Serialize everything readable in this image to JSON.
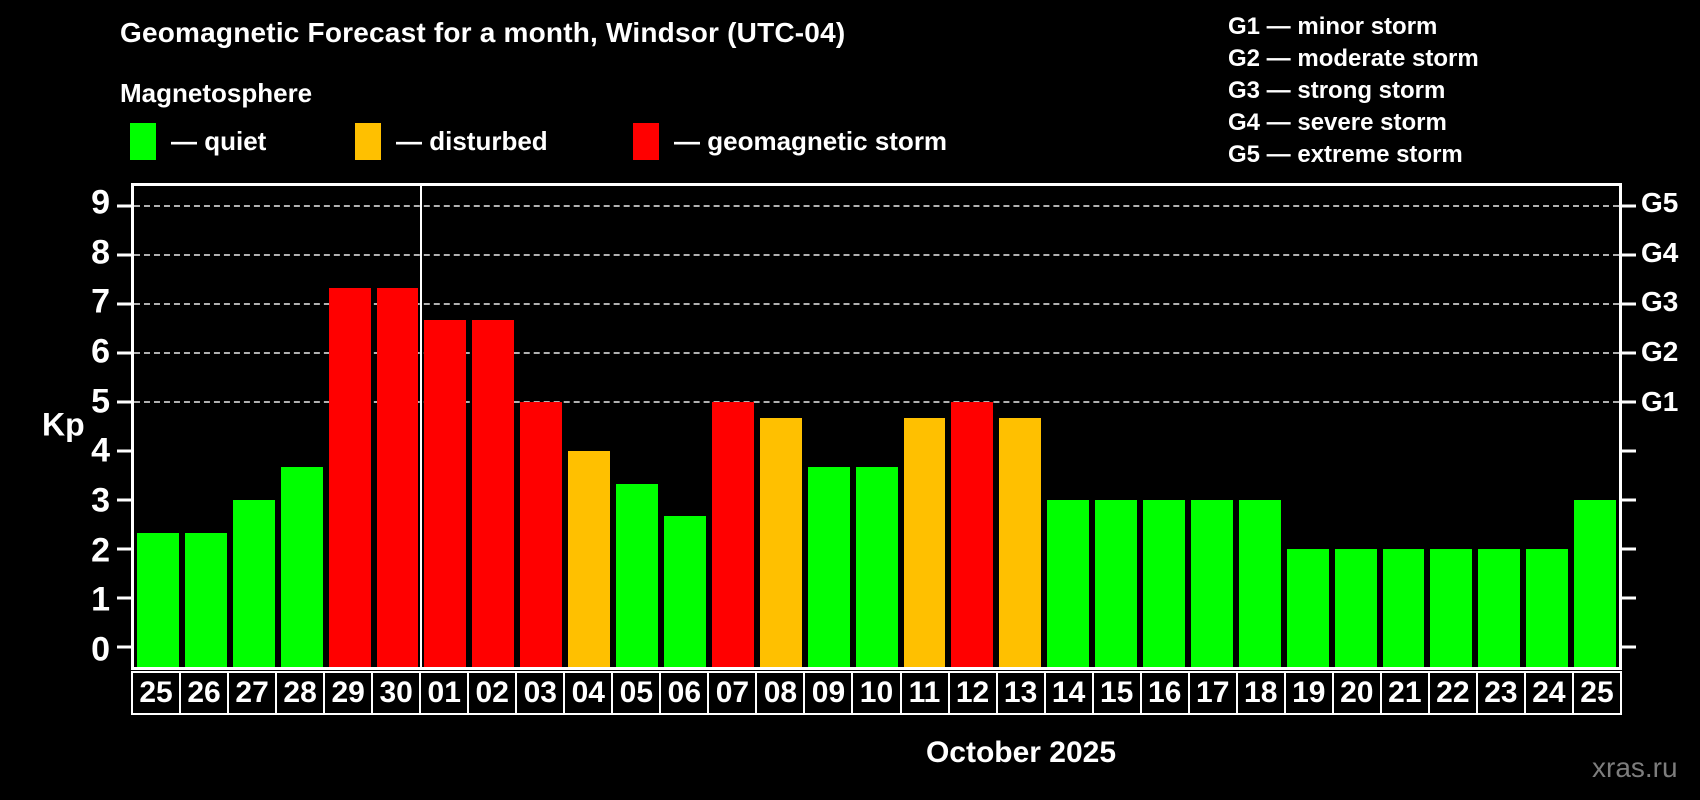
{
  "title": "Geomagnetic Forecast for a month, Windsor (UTC-04)",
  "subtitle": "Magnetosphere",
  "legend": {
    "items": [
      {
        "key": "quiet",
        "label": "— quiet"
      },
      {
        "key": "disturbed",
        "label": "— disturbed"
      },
      {
        "key": "storm",
        "label": "— geomagnetic storm"
      }
    ]
  },
  "g_scale_legend": [
    "G1 — minor storm",
    "G2 — moderate storm",
    "G3 — strong storm",
    "G4 — severe storm",
    "G5 — extreme storm"
  ],
  "y_axis": {
    "label": "Kp",
    "ticks": [
      0,
      1,
      2,
      3,
      4,
      5,
      6,
      7,
      8,
      9
    ]
  },
  "right_axis": {
    "labels": [
      {
        "text": "G1",
        "kp": 5
      },
      {
        "text": "G2",
        "kp": 6
      },
      {
        "text": "G3",
        "kp": 7
      },
      {
        "text": "G4",
        "kp": 8
      },
      {
        "text": "G5",
        "kp": 9
      }
    ]
  },
  "x_axis": {
    "month_label": "October 2025"
  },
  "watermark": "xras.ru",
  "colors": {
    "quiet": "#00ff00",
    "disturbed": "#ffc000",
    "storm": "#ff0000",
    "background": "#000000",
    "axis": "#ffffff",
    "gridline": "#b0b0b0",
    "watermark_color": "#7d7d7d"
  },
  "chart_data": {
    "type": "bar",
    "title": "Geomagnetic Forecast for a month, Windsor (UTC-04)",
    "subtitle": "Magnetosphere",
    "xlabel": "October 2025",
    "ylabel": "Kp",
    "ylim": [
      0,
      9
    ],
    "y_ticks": [
      0,
      1,
      2,
      3,
      4,
      5,
      6,
      7,
      8,
      9
    ],
    "gridlines_at": [
      5,
      6,
      7,
      8,
      9
    ],
    "grid": "horizontal dashed lines only at storm levels Kp 5-9 (G1-G5)",
    "legend_position": "top-left",
    "categories": [
      "25",
      "26",
      "27",
      "28",
      "29",
      "30",
      "01",
      "02",
      "03",
      "04",
      "05",
      "06",
      "07",
      "08",
      "09",
      "10",
      "11",
      "12",
      "13",
      "14",
      "15",
      "16",
      "17",
      "18",
      "19",
      "20",
      "21",
      "22",
      "23",
      "24",
      "25"
    ],
    "values": [
      2.33,
      2.33,
      3,
      3.67,
      7.33,
      7.33,
      6.67,
      6.67,
      5,
      4,
      3.33,
      2.67,
      5,
      4.67,
      3.67,
      3.67,
      4.67,
      5,
      4.67,
      3,
      3,
      3,
      3,
      3,
      2,
      2,
      2,
      2,
      2,
      2,
      3
    ],
    "statuses": [
      "quiet",
      "quiet",
      "quiet",
      "quiet",
      "storm",
      "storm",
      "storm",
      "storm",
      "storm",
      "disturbed",
      "quiet",
      "quiet",
      "storm",
      "disturbed",
      "quiet",
      "quiet",
      "disturbed",
      "storm",
      "disturbed",
      "quiet",
      "quiet",
      "quiet",
      "quiet",
      "quiet",
      "quiet",
      "quiet",
      "quiet",
      "quiet",
      "quiet",
      "quiet",
      "quiet"
    ],
    "month_boundary_after_index": 5
  }
}
